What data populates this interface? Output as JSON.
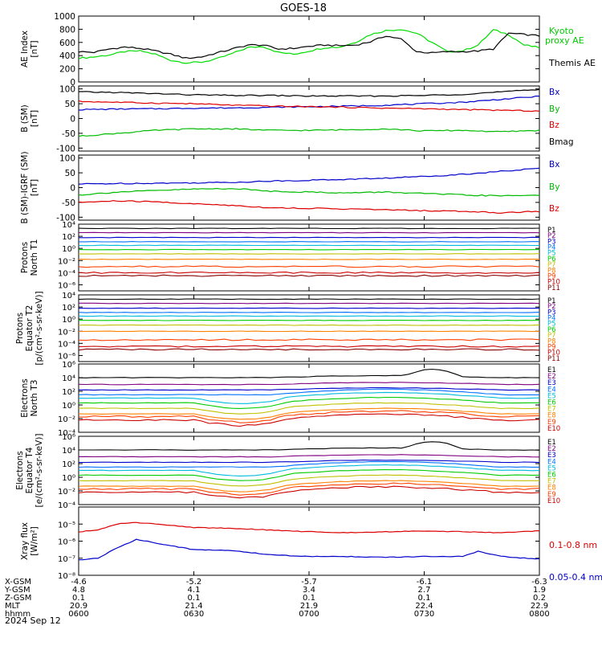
{
  "title": "GOES-18",
  "date_label": "2024 Sep 12",
  "x_axis": {
    "row_labels": [
      "X-GSM",
      "Y-GSM",
      "Z-GSM",
      "MLT",
      "hhmm"
    ],
    "ticks": [
      {
        "values": [
          "-4.6",
          "4.8",
          "0.1",
          "20.9",
          "0600"
        ]
      },
      {
        "values": [
          "-5.2",
          "4.1",
          "0.1",
          "21.4",
          "0630"
        ]
      },
      {
        "values": [
          "-5.7",
          "3.4",
          "0.1",
          "21.9",
          "0700"
        ]
      },
      {
        "values": [
          "-6.1",
          "2.7",
          "0.1",
          "22.4",
          "0730"
        ]
      },
      {
        "values": [
          "-6.3",
          "1.9",
          "0.2",
          "22.9",
          "0800"
        ]
      }
    ]
  },
  "chart_data": [
    {
      "type": "line",
      "panel": "ae",
      "ylabel": [
        "AE Index",
        "[nT]"
      ],
      "ylim": [
        0,
        1000
      ],
      "yticks": [
        "0",
        "200",
        "400",
        "600",
        "800",
        "1000"
      ],
      "x_range": [
        "0600",
        "0800"
      ],
      "series": [
        {
          "name": "Kyoto proxy AE",
          "color": "#00dd00",
          "x": [
            0,
            4,
            8,
            12,
            16,
            20,
            24,
            28,
            32,
            36,
            40,
            44,
            48,
            52,
            56,
            60,
            64,
            68,
            72,
            76,
            80,
            84,
            88,
            92,
            96,
            100,
            104,
            108,
            112,
            116,
            120
          ],
          "y": [
            360,
            380,
            410,
            460,
            470,
            420,
            330,
            290,
            300,
            350,
            430,
            520,
            540,
            450,
            420,
            470,
            520,
            530,
            600,
            720,
            780,
            800,
            740,
            600,
            460,
            470,
            560,
            790,
            720,
            560,
            520
          ]
        },
        {
          "name": "Themis AE",
          "color": "#000000",
          "x": [
            0,
            4,
            8,
            12,
            16,
            20,
            24,
            28,
            32,
            36,
            40,
            44,
            48,
            52,
            56,
            60,
            64,
            68,
            72,
            76,
            80,
            84,
            88,
            92,
            96,
            100,
            104,
            108,
            112,
            116,
            120
          ],
          "y": [
            460,
            450,
            500,
            530,
            510,
            470,
            420,
            360,
            380,
            440,
            500,
            560,
            560,
            500,
            510,
            540,
            560,
            550,
            560,
            610,
            700,
            650,
            460,
            440,
            460,
            460,
            470,
            500,
            740,
            720,
            700
          ]
        }
      ],
      "legend": [
        "Kyoto",
        "proxy AE",
        "Themis AE"
      ]
    },
    {
      "type": "line",
      "panel": "b_sm",
      "ylabel": [
        "B (SM)",
        "[nT]"
      ],
      "ylim": [
        -110,
        110
      ],
      "yticks": [
        "-100",
        "-50",
        "0",
        "50",
        "100"
      ],
      "series": [
        {
          "name": "Bx",
          "color": "#0000cc",
          "x": [
            0,
            10,
            20,
            30,
            40,
            50,
            60,
            70,
            80,
            90,
            100,
            110,
            120
          ],
          "y": [
            30,
            32,
            33,
            35,
            36,
            38,
            40,
            42,
            45,
            50,
            55,
            65,
            75
          ]
        },
        {
          "name": "By",
          "color": "#00bb00",
          "x": [
            0,
            10,
            20,
            30,
            40,
            50,
            60,
            70,
            80,
            90,
            100,
            110,
            120
          ],
          "y": [
            -60,
            -50,
            -40,
            -35,
            -35,
            -40,
            -40,
            -38,
            -35,
            -42,
            -40,
            -45,
            -40
          ]
        },
        {
          "name": "Bz",
          "color": "#dd0000",
          "x": [
            0,
            10,
            20,
            30,
            40,
            50,
            60,
            70,
            80,
            90,
            100,
            110,
            120
          ],
          "y": [
            58,
            55,
            52,
            50,
            45,
            42,
            40,
            38,
            35,
            33,
            30,
            28,
            25
          ]
        },
        {
          "name": "Bmag",
          "color": "#000000",
          "x": [
            0,
            10,
            20,
            30,
            40,
            50,
            60,
            70,
            80,
            90,
            100,
            110,
            120
          ],
          "y": [
            90,
            88,
            84,
            80,
            78,
            78,
            76,
            76,
            76,
            78,
            82,
            90,
            98
          ]
        }
      ]
    },
    {
      "type": "line",
      "panel": "b_igrf",
      "ylabel": [
        "B (SM)-IGRF (SM)",
        "[nT]"
      ],
      "ylim": [
        -110,
        110
      ],
      "yticks": [
        "-100",
        "-50",
        "0",
        "50",
        "100"
      ],
      "series": [
        {
          "name": "Bx",
          "color": "#0000cc",
          "x": [
            0,
            10,
            20,
            30,
            40,
            50,
            60,
            70,
            80,
            90,
            100,
            110,
            120
          ],
          "y": [
            12,
            14,
            15,
            16,
            18,
            22,
            25,
            28,
            32,
            38,
            45,
            55,
            65
          ]
        },
        {
          "name": "By",
          "color": "#00bb00",
          "x": [
            0,
            10,
            20,
            30,
            40,
            50,
            60,
            70,
            80,
            90,
            100,
            110,
            120
          ],
          "y": [
            -25,
            -15,
            -10,
            -5,
            -3,
            -12,
            -15,
            -18,
            -15,
            -20,
            -25,
            -28,
            -25
          ]
        },
        {
          "name": "Bz",
          "color": "#dd0000",
          "x": [
            0,
            10,
            20,
            30,
            40,
            50,
            60,
            70,
            80,
            90,
            100,
            110,
            120
          ],
          "y": [
            -50,
            -45,
            -48,
            -55,
            -60,
            -68,
            -70,
            -72,
            -75,
            -78,
            -80,
            -85,
            -80
          ]
        }
      ]
    },
    {
      "type": "line",
      "panel": "protons_t1",
      "ylabel": [
        "Protons",
        "North T1"
      ],
      "yscale": "log",
      "ylim_exp": [
        -7,
        4
      ],
      "yticks": [
        "10⁴",
        "10²",
        "10⁰",
        "10⁻²",
        "10⁻⁴",
        "10⁻⁶"
      ],
      "tick_exps": [
        4,
        2,
        0,
        -2,
        -4,
        -6
      ],
      "channels": [
        "P1",
        "P2",
        "P3",
        "P4",
        "P5",
        "P6",
        "P7",
        "P8",
        "P9",
        "P10",
        "P11"
      ],
      "channel_colors": [
        "#000000",
        "#800080",
        "#0000cc",
        "#0070ff",
        "#00bbdd",
        "#00cc00",
        "#c0c000",
        "#ff8000",
        "#ff4000",
        "#cc0000",
        "#880000"
      ],
      "levels_log10": [
        3.3,
        2.6,
        1.8,
        1.1,
        0.5,
        -0.2,
        -0.9,
        -1.8,
        -3.0,
        -4.0,
        -4.5
      ]
    },
    {
      "type": "line",
      "panel": "protons_t2",
      "ylabel": [
        "Protons",
        "Equator T2",
        "[p/(cm²-s-sr-keV)]"
      ],
      "yscale": "log",
      "ylim_exp": [
        -7,
        4
      ],
      "yticks": [
        "10⁴",
        "10²",
        "10⁰",
        "10⁻²",
        "10⁻⁴",
        "10⁻⁶"
      ],
      "tick_exps": [
        4,
        2,
        0,
        -2,
        -4,
        -6
      ],
      "channels": [
        "P1",
        "P2",
        "P3",
        "P4",
        "P5",
        "P6",
        "P7",
        "P8",
        "P9",
        "P10",
        "P11"
      ],
      "channel_colors": [
        "#000000",
        "#800080",
        "#0000cc",
        "#0070ff",
        "#00bbdd",
        "#00cc00",
        "#c0c000",
        "#ff8000",
        "#ff4000",
        "#cc0000",
        "#880000"
      ],
      "levels_log10": [
        3.3,
        2.6,
        1.8,
        1.1,
        0.5,
        -0.2,
        -1.0,
        -2.0,
        -3.4,
        -4.5,
        -5.0
      ]
    },
    {
      "type": "line",
      "panel": "electrons_t3",
      "ylabel": [
        "Electrons",
        "North T3"
      ],
      "yscale": "log",
      "ylim_exp": [
        -4,
        6
      ],
      "yticks": [
        "10⁶",
        "10⁴",
        "10²",
        "10⁰",
        "10⁻²",
        "10⁻⁴"
      ],
      "tick_exps": [
        6,
        4,
        2,
        0,
        -2,
        -4
      ],
      "channels": [
        "E1",
        "E2",
        "E3",
        "E4",
        "E5",
        "E6",
        "E7",
        "E8",
        "E9",
        "E10"
      ],
      "channel_colors": [
        "#000000",
        "#800080",
        "#0000cc",
        "#0070ff",
        "#00bbdd",
        "#00cc00",
        "#c0c000",
        "#ff8000",
        "#ff4000",
        "#cc0000"
      ],
      "levels_log10": [
        4.0,
        3.0,
        2.2,
        1.5,
        1.0,
        0.3,
        -0.5,
        -1.3,
        -1.7,
        -2.2
      ]
    },
    {
      "type": "line",
      "panel": "electrons_t4",
      "ylabel": [
        "Electrons",
        "Equator T4",
        "[e/(cm²-s-sr-keV)]"
      ],
      "yscale": "log",
      "ylim_exp": [
        -4,
        6
      ],
      "yticks": [
        "10⁶",
        "10⁴",
        "10²",
        "10⁰",
        "10⁻²",
        "10⁻⁴"
      ],
      "tick_exps": [
        6,
        4,
        2,
        0,
        -2,
        -4
      ],
      "channels": [
        "E1",
        "E2",
        "E3",
        "E4",
        "E5",
        "E6",
        "E7",
        "E8",
        "E9",
        "E10"
      ],
      "channel_colors": [
        "#000000",
        "#800080",
        "#0000cc",
        "#0070ff",
        "#00bbdd",
        "#00cc00",
        "#c0c000",
        "#ff8000",
        "#ff4000",
        "#cc0000"
      ],
      "levels_log10": [
        4.0,
        3.0,
        2.2,
        1.5,
        1.0,
        0.3,
        -0.5,
        -1.3,
        -1.7,
        -2.2
      ]
    },
    {
      "type": "line",
      "panel": "xray",
      "ylabel": [
        "Xray flux",
        "[W/m²]"
      ],
      "yscale": "log",
      "ylim_exp": [
        -8,
        -4
      ],
      "yticks": [
        "10⁻⁵",
        "10⁻⁶",
        "10⁻⁷",
        "10⁻⁸"
      ],
      "tick_exps": [
        -5,
        -6,
        -7,
        -8
      ],
      "series": [
        {
          "name": "0.1-0.8 nm",
          "color": "#dd0000",
          "x": [
            0,
            5,
            10,
            15,
            20,
            25,
            30,
            40,
            50,
            60,
            70,
            80,
            90,
            100,
            110,
            120
          ],
          "y_log10": [
            -5.45,
            -5.35,
            -5.0,
            -4.9,
            -5.0,
            -5.1,
            -5.2,
            -5.25,
            -5.35,
            -5.45,
            -5.5,
            -5.45,
            -5.4,
            -5.45,
            -5.5,
            -5.4
          ]
        },
        {
          "name": "0.05-0.4 nm",
          "color": "#0000cc",
          "x": [
            0,
            5,
            10,
            15,
            20,
            25,
            30,
            40,
            50,
            60,
            70,
            80,
            90,
            100,
            104,
            110,
            120
          ],
          "y_log10": [
            -7.1,
            -7.0,
            -6.4,
            -5.9,
            -6.1,
            -6.3,
            -6.5,
            -6.55,
            -6.8,
            -6.9,
            -6.9,
            -6.95,
            -6.9,
            -6.9,
            -6.6,
            -6.9,
            -7.05
          ]
        }
      ],
      "legend": [
        "0.1-0.8 nm",
        "0.05-0.4 nm"
      ]
    }
  ]
}
